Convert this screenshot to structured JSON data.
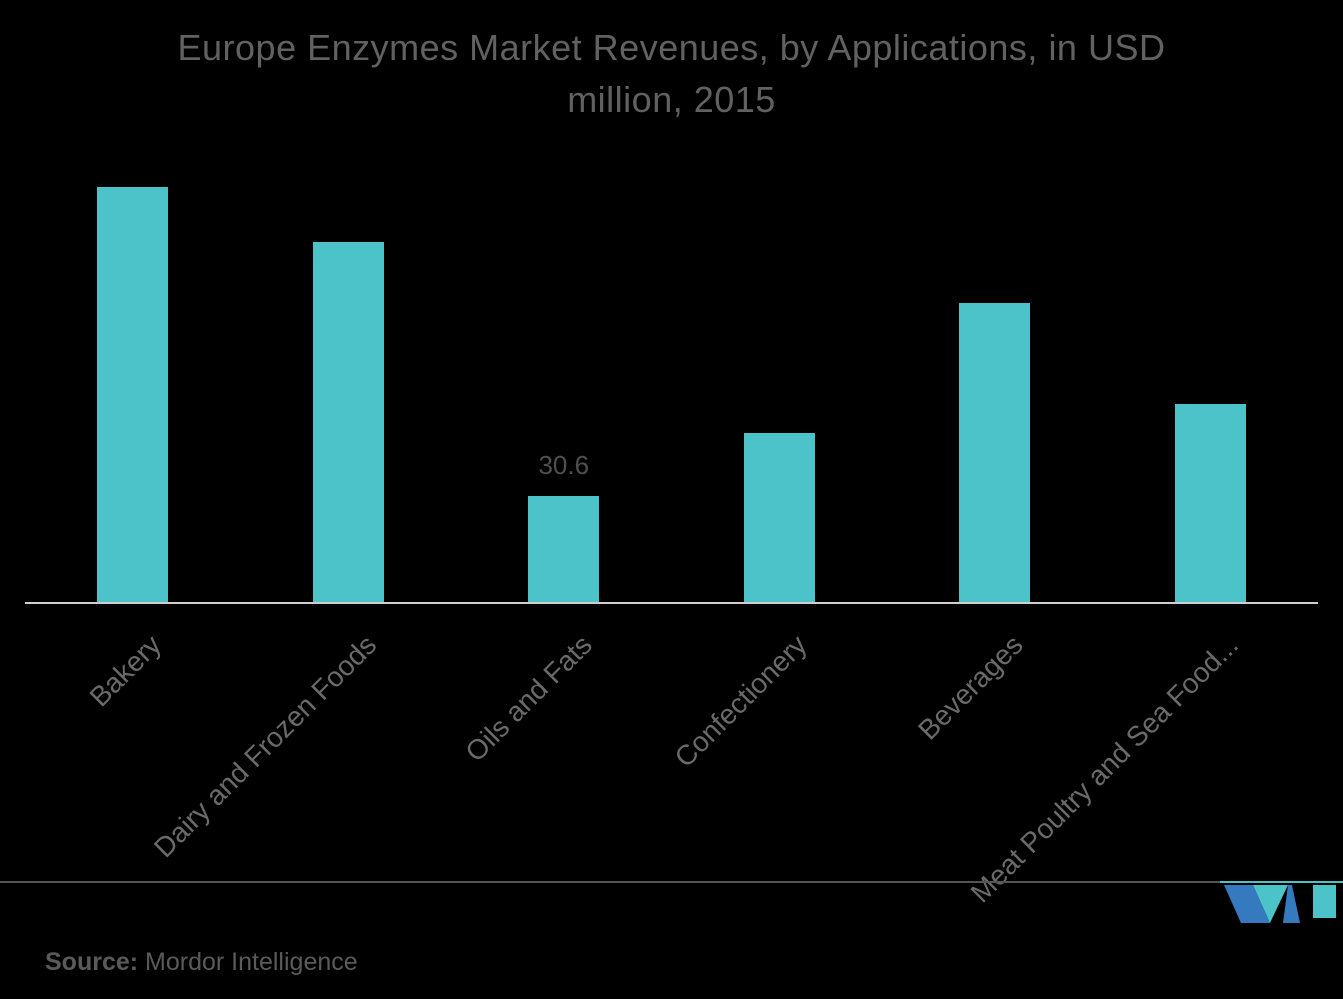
{
  "title": {
    "line1": "Europe Enzymes Market Revenues, by Applications, in USD",
    "line2": "million, 2015"
  },
  "chart_data": {
    "type": "bar",
    "title": "Europe Enzymes Market Revenues, by Applications, in USD million, 2015",
    "categories": [
      "Bakery",
      "Dairy and Frozen Foods",
      "Oils and Fats",
      "Confectionery",
      "Beverages",
      "Meat Poultry and Sea Food..."
    ],
    "values": [
      118.7,
      103.0,
      30.6,
      48.6,
      85.5,
      56.9
    ],
    "data_labels": [
      "",
      "",
      "30.6",
      "",
      "",
      ""
    ],
    "xlabel": "",
    "ylabel": "",
    "ylim": [
      0,
      135
    ],
    "grid": false,
    "legend": false,
    "bar_color": "#4CC3C9",
    "axis_line_color": "#cfcfcf",
    "label_color": "#6a6a6a",
    "title_color": "#616161"
  },
  "footer": {
    "source_label": "Source:",
    "source_value": " Mordor Intelligence",
    "logo_name": "mordor-intelligence-logo",
    "logo_colors": {
      "teal": "#4CC3C9",
      "blue": "#3579BE"
    }
  }
}
